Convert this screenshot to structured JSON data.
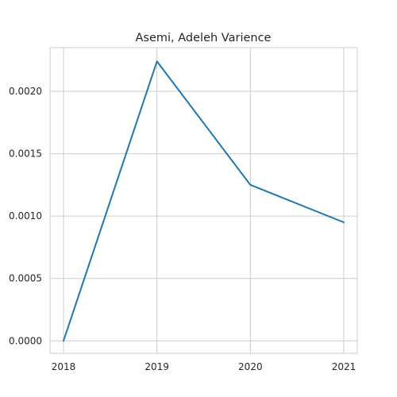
{
  "chart_data": {
    "type": "line",
    "title": "Asemi, Adeleh Varience",
    "xlabel": "",
    "ylabel": "",
    "x": [
      "2018",
      "2019",
      "2020",
      "2021"
    ],
    "series": [
      {
        "values": [
          0.0,
          0.00224,
          0.00125,
          0.00095
        ]
      }
    ],
    "ylim": [
      -0.0001,
      0.00235
    ],
    "yticks": [
      "0.0000",
      "0.0005",
      "0.0010",
      "0.0015",
      "0.0020"
    ],
    "ytick_values": [
      0.0,
      0.0005,
      0.001,
      0.0015,
      0.002
    ],
    "grid": true,
    "colors": {
      "line": "#1f77b4",
      "grid": "#cccccc",
      "axes_edge": "#cccccc",
      "text": "#262626"
    }
  }
}
